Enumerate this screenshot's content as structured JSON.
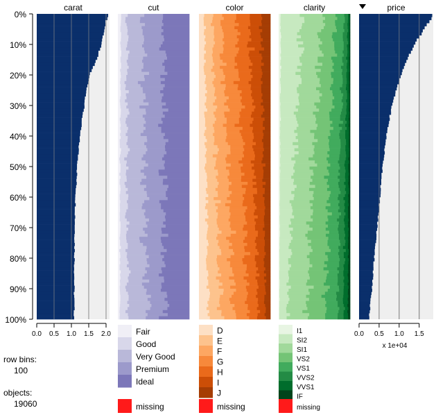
{
  "chart_data": {
    "type": "tableplot",
    "y_ticks": [
      "0%",
      "10%",
      "20%",
      "30%",
      "40%",
      "50%",
      "60%",
      "70%",
      "80%",
      "90%",
      "100%"
    ],
    "sort_column": "price",
    "sort_direction": "descending",
    "columns": [
      {
        "name": "carat",
        "kind": "numeric",
        "xlim": [
          0,
          2.1
        ],
        "ticks": [
          0,
          0.5,
          1,
          1.5,
          2
        ],
        "tick_labels": [
          "0.0",
          "0.5",
          "1.0",
          "1.5",
          "2.0"
        ],
        "axis_note": "",
        "value_profile": {
          "bins_percent": [
            0,
            2,
            5,
            10,
            15,
            20,
            25,
            30,
            35,
            40,
            50,
            60,
            70,
            80,
            90,
            100
          ],
          "values": [
            2.1,
            2.0,
            1.96,
            1.86,
            1.72,
            1.52,
            1.44,
            1.37,
            1.3,
            1.24,
            1.17,
            1.12,
            1.1,
            1.09,
            1.08,
            1.08
          ]
        }
      },
      {
        "name": "cut",
        "kind": "categorical",
        "categories": [
          "Fair",
          "Good",
          "Very Good",
          "Premium",
          "Ideal"
        ],
        "colors": [
          "#f0eff6",
          "#d8d7ea",
          "#b9b8d9",
          "#9c9acb",
          "#7c77b9"
        ],
        "proportion_profile": {
          "bins_percent": [
            0,
            50,
            100
          ],
          "proportions": [
            [
              0.04,
              0.08,
              0.23,
              0.29,
              0.36
            ],
            [
              0.03,
              0.09,
              0.24,
              0.27,
              0.37
            ],
            [
              0.03,
              0.11,
              0.26,
              0.24,
              0.36
            ]
          ]
        }
      },
      {
        "name": "color",
        "kind": "categorical",
        "categories": [
          "D",
          "E",
          "F",
          "G",
          "H",
          "I",
          "J"
        ],
        "colors": [
          "#fde0c5",
          "#fdc38d",
          "#fda762",
          "#f7893b",
          "#ea6a1b",
          "#cc4e07",
          "#a53d04"
        ],
        "proportion_profile": {
          "bins_percent": [
            0,
            50,
            100
          ],
          "proportions": [
            [
              0.08,
              0.11,
              0.13,
              0.19,
              0.19,
              0.17,
              0.13
            ],
            [
              0.1,
              0.14,
              0.17,
              0.21,
              0.16,
              0.13,
              0.09
            ],
            [
              0.13,
              0.18,
              0.18,
              0.2,
              0.14,
              0.1,
              0.07
            ]
          ]
        }
      },
      {
        "name": "clarity",
        "kind": "categorical",
        "categories": [
          "I1",
          "SI2",
          "SI1",
          "VS2",
          "VS1",
          "VVS2",
          "VVS1",
          "IF"
        ],
        "colors": [
          "#e8f5e3",
          "#c7e9c0",
          "#a1d99b",
          "#74c476",
          "#41ab5d",
          "#238b45",
          "#006d2c",
          "#00441b"
        ],
        "proportion_profile": {
          "bins_percent": [
            0,
            50,
            100
          ],
          "proportions": [
            [
              0.03,
              0.3,
              0.29,
              0.18,
              0.12,
              0.05,
              0.02,
              0.01
            ],
            [
              0.02,
              0.2,
              0.26,
              0.22,
              0.15,
              0.08,
              0.05,
              0.02
            ],
            [
              0.01,
              0.11,
              0.28,
              0.26,
              0.17,
              0.08,
              0.06,
              0.03
            ]
          ]
        }
      },
      {
        "name": "price",
        "kind": "numeric",
        "xlim": [
          0,
          1.85
        ],
        "ticks": [
          0,
          0.5,
          1,
          1.5
        ],
        "tick_labels": [
          "0.0",
          "0.5",
          "1.0",
          "1.5"
        ],
        "axis_note": "x 1e+04",
        "value_profile": {
          "bins_percent": [
            0,
            2,
            5,
            10,
            15,
            20,
            25,
            30,
            40,
            50,
            60,
            70,
            80,
            90,
            100
          ],
          "values": [
            1.85,
            1.78,
            1.62,
            1.38,
            1.2,
            1.04,
            0.92,
            0.82,
            0.68,
            0.59,
            0.52,
            0.45,
            0.38,
            0.32,
            0.25
          ]
        }
      }
    ],
    "missing_label": "missing",
    "missing_color": "#ff1a1a",
    "numeric_bar_color": "#0a2f6b",
    "numeric_bg_color": "#efefef"
  },
  "info": {
    "row_bins_label": "row bins:",
    "row_bins_value": "100",
    "objects_label": "objects:",
    "objects_value": "19060"
  },
  "colors": {
    "sort_arrow": "#000000",
    "grid_line": "#888888"
  }
}
